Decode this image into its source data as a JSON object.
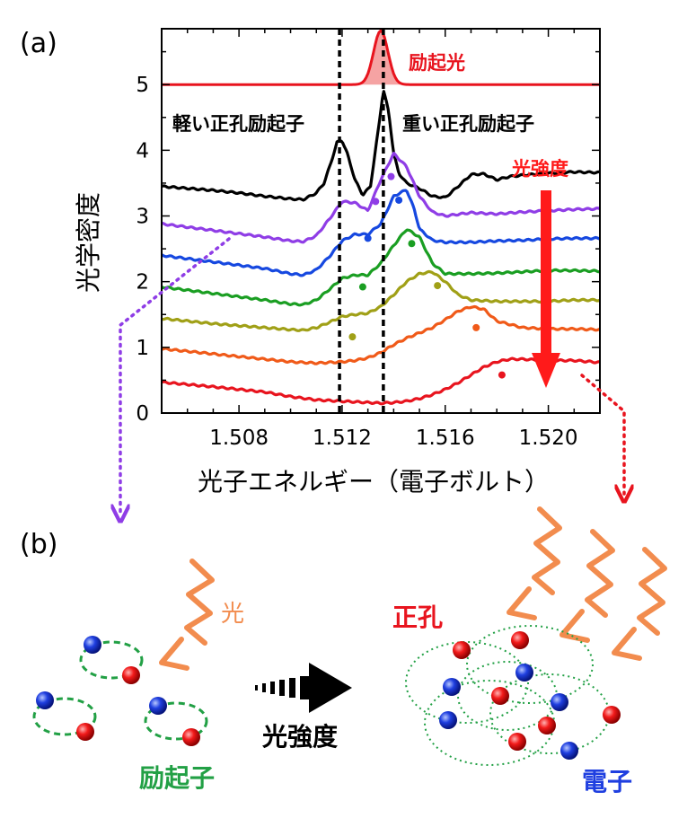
{
  "panel_a_label": "(a)",
  "panel_b_label": "(b)",
  "chart_data": {
    "type": "line",
    "xlabel": "光子エネルギー（電子ボルト）",
    "ylabel": "光学密度",
    "xlim": [
      1.505,
      1.522
    ],
    "ylim": [
      0,
      5.85
    ],
    "xticks": [
      1.508,
      1.512,
      1.516,
      1.52
    ],
    "xtick_labels": [
      "1.508",
      "1.512",
      "1.516",
      "1.520"
    ],
    "yticks": [
      0,
      1,
      2,
      3,
      4,
      5
    ],
    "ytick_labels": [
      "0",
      "1",
      "2",
      "3",
      "4",
      "5"
    ],
    "grid": false,
    "excitation": {
      "label": "励起光",
      "color": "#e8141e",
      "baseline": 5.0,
      "center": 1.5135,
      "width": 0.00028,
      "height": 0.82
    },
    "vlines": [
      1.5119,
      1.5136
    ],
    "annotations": {
      "light_hole": "軽い正孔励起子",
      "heavy_hole": "重い正孔励起子",
      "intensity": "光強度",
      "intensity_color": "#ff1a1a"
    },
    "series": [
      {
        "color": "#000000",
        "x": [
          1.505,
          1.506,
          1.507,
          1.508,
          1.509,
          1.51,
          1.5105,
          1.511,
          1.5113,
          1.5116,
          1.5118,
          1.512,
          1.5122,
          1.5125,
          1.5128,
          1.5131,
          1.5134,
          1.5136,
          1.5138,
          1.514,
          1.5142,
          1.5145,
          1.515,
          1.5155,
          1.516,
          1.5165,
          1.517,
          1.5175,
          1.518,
          1.5185,
          1.519,
          1.52,
          1.521,
          1.522
        ],
        "y": [
          3.45,
          3.42,
          3.39,
          3.35,
          3.3,
          3.26,
          3.25,
          3.35,
          3.5,
          3.85,
          4.12,
          4.15,
          3.95,
          3.55,
          3.32,
          3.45,
          4.3,
          4.92,
          4.6,
          3.95,
          3.65,
          3.5,
          3.42,
          3.3,
          3.28,
          3.45,
          3.63,
          3.64,
          3.55,
          3.6,
          3.62,
          3.65,
          3.67,
          3.66
        ]
      },
      {
        "color": "#8f3de6",
        "x": [
          1.505,
          1.507,
          1.509,
          1.51,
          1.5105,
          1.511,
          1.5115,
          1.512,
          1.5125,
          1.513,
          1.5135,
          1.514,
          1.5145,
          1.515,
          1.5155,
          1.516,
          1.517,
          1.518,
          1.519,
          1.52,
          1.521,
          1.522
        ],
        "y": [
          2.88,
          2.78,
          2.68,
          2.62,
          2.61,
          2.7,
          2.95,
          3.22,
          3.2,
          3.08,
          3.55,
          3.95,
          3.75,
          3.3,
          3.06,
          3.0,
          3.05,
          3.03,
          3.06,
          3.08,
          3.1,
          3.11
        ]
      },
      {
        "color": "#1648e0",
        "x": [
          1.505,
          1.507,
          1.509,
          1.51,
          1.5105,
          1.511,
          1.5115,
          1.512,
          1.5125,
          1.513,
          1.5135,
          1.514,
          1.5145,
          1.5148,
          1.515,
          1.5155,
          1.516,
          1.517,
          1.518,
          1.519,
          1.52,
          1.521,
          1.522
        ],
        "y": [
          2.4,
          2.3,
          2.2,
          2.12,
          2.1,
          2.18,
          2.38,
          2.62,
          2.72,
          2.72,
          2.88,
          3.3,
          3.4,
          3.1,
          2.8,
          2.63,
          2.6,
          2.6,
          2.62,
          2.63,
          2.65,
          2.66,
          2.66
        ]
      },
      {
        "color": "#1a9e22",
        "x": [
          1.505,
          1.507,
          1.509,
          1.51,
          1.5105,
          1.511,
          1.5115,
          1.512,
          1.5125,
          1.513,
          1.5135,
          1.514,
          1.5145,
          1.515,
          1.5155,
          1.516,
          1.517,
          1.518,
          1.519,
          1.52,
          1.521,
          1.522
        ],
        "y": [
          1.92,
          1.82,
          1.72,
          1.66,
          1.65,
          1.72,
          1.88,
          2.05,
          2.1,
          2.1,
          2.28,
          2.55,
          2.8,
          2.68,
          2.28,
          2.12,
          2.12,
          2.13,
          2.15,
          2.17,
          2.17,
          2.16
        ]
      },
      {
        "color": "#a0a017",
        "x": [
          1.505,
          1.507,
          1.509,
          1.51,
          1.5105,
          1.511,
          1.5115,
          1.512,
          1.5125,
          1.513,
          1.5135,
          1.514,
          1.5145,
          1.515,
          1.5155,
          1.516,
          1.5165,
          1.517,
          1.518,
          1.519,
          1.52,
          1.521,
          1.522
        ],
        "y": [
          1.44,
          1.36,
          1.3,
          1.27,
          1.26,
          1.3,
          1.38,
          1.47,
          1.5,
          1.52,
          1.62,
          1.8,
          2.0,
          2.12,
          2.15,
          2.0,
          1.8,
          1.72,
          1.7,
          1.7,
          1.7,
          1.72,
          1.72
        ]
      },
      {
        "color": "#f05a19",
        "x": [
          1.505,
          1.507,
          1.509,
          1.51,
          1.511,
          1.512,
          1.5125,
          1.513,
          1.5135,
          1.514,
          1.5145,
          1.515,
          1.5155,
          1.516,
          1.5165,
          1.517,
          1.5175,
          1.518,
          1.519,
          1.52,
          1.521,
          1.522
        ],
        "y": [
          0.98,
          0.9,
          0.82,
          0.78,
          0.76,
          0.78,
          0.8,
          0.84,
          0.92,
          1.04,
          1.14,
          1.22,
          1.3,
          1.42,
          1.55,
          1.62,
          1.58,
          1.4,
          1.3,
          1.28,
          1.28,
          1.27
        ]
      },
      {
        "color": "#e8141e",
        "x": [
          1.505,
          1.507,
          1.509,
          1.51,
          1.511,
          1.512,
          1.513,
          1.5135,
          1.514,
          1.5145,
          1.515,
          1.5155,
          1.516,
          1.5165,
          1.517,
          1.5175,
          1.518,
          1.5185,
          1.519,
          1.52,
          1.521,
          1.522
        ],
        "y": [
          0.47,
          0.4,
          0.32,
          0.25,
          0.2,
          0.18,
          0.16,
          0.15,
          0.16,
          0.18,
          0.22,
          0.28,
          0.36,
          0.46,
          0.58,
          0.7,
          0.78,
          0.82,
          0.82,
          0.8,
          0.8,
          0.77
        ]
      }
    ],
    "markers": [
      {
        "x": 1.5133,
        "y": 3.22,
        "color": "#8f3de6"
      },
      {
        "x": 1.5139,
        "y": 3.6,
        "color": "#8f3de6"
      },
      {
        "x": 1.513,
        "y": 2.66,
        "color": "#1648e0"
      },
      {
        "x": 1.5142,
        "y": 3.24,
        "color": "#1648e0"
      },
      {
        "x": 1.5128,
        "y": 1.92,
        "color": "#1a9e22"
      },
      {
        "x": 1.5147,
        "y": 2.58,
        "color": "#1a9e22"
      },
      {
        "x": 1.5124,
        "y": 1.16,
        "color": "#a0a017"
      },
      {
        "x": 1.5157,
        "y": 1.94,
        "color": "#a0a017"
      },
      {
        "x": 1.5172,
        "y": 1.3,
        "color": "#f05a19"
      },
      {
        "x": 1.5182,
        "y": 0.58,
        "color": "#e8141e"
      }
    ]
  },
  "panel_b": {
    "light_label": "光",
    "hole_label": "正孔",
    "electron_label": "電子",
    "exciton_label": "励起子",
    "intensity_label": "光強度",
    "colors": {
      "hole": "#e8141e",
      "electron": "#1f3fe0",
      "exciton": "#22a045",
      "light": "#f28c4e"
    }
  }
}
